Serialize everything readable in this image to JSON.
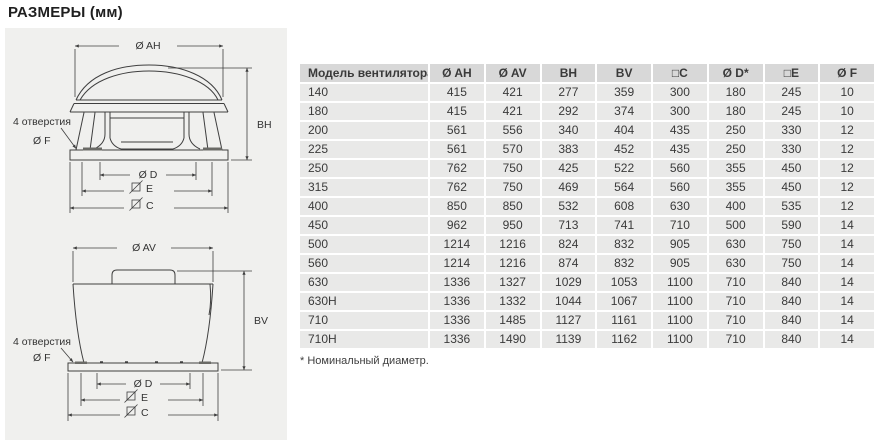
{
  "page": {
    "title": "РАЗМЕРЫ (мм)"
  },
  "drawings": {
    "top": {
      "view": "horizontal-discharge-fan-side-view",
      "dim_diameter_top": "Ø AH",
      "dim_height": "BH",
      "holes_label": "4 отверстия",
      "holes_diameter": "Ø F",
      "dim_d": "Ø D",
      "dim_e": "E",
      "dim_c": "C"
    },
    "bottom": {
      "view": "vertical-discharge-fan-side-view",
      "dim_diameter_top": "Ø AV",
      "dim_height": "BV",
      "holes_label": "4 отверстия",
      "holes_diameter": "Ø F",
      "dim_d": "Ø D",
      "dim_e": "E",
      "dim_c": "C"
    }
  },
  "table": {
    "columns": [
      "Модель вентилятора",
      "Ø AH",
      "Ø AV",
      "BH",
      "BV",
      "□C",
      "Ø D*",
      "□E",
      "Ø F"
    ],
    "rows": [
      [
        "140",
        "415",
        "421",
        "277",
        "359",
        "300",
        "180",
        "245",
        "10"
      ],
      [
        "180",
        "415",
        "421",
        "292",
        "374",
        "300",
        "180",
        "245",
        "10"
      ],
      [
        "200",
        "561",
        "556",
        "340",
        "404",
        "435",
        "250",
        "330",
        "12"
      ],
      [
        "225",
        "561",
        "570",
        "383",
        "452",
        "435",
        "250",
        "330",
        "12"
      ],
      [
        "250",
        "762",
        "750",
        "425",
        "522",
        "560",
        "355",
        "450",
        "12"
      ],
      [
        "315",
        "762",
        "750",
        "469",
        "564",
        "560",
        "355",
        "450",
        "12"
      ],
      [
        "400",
        "850",
        "850",
        "532",
        "608",
        "630",
        "400",
        "535",
        "12"
      ],
      [
        "450",
        "962",
        "950",
        "713",
        "741",
        "710",
        "500",
        "590",
        "14"
      ],
      [
        "500",
        "1214",
        "1216",
        "824",
        "832",
        "905",
        "630",
        "750",
        "14"
      ],
      [
        "560",
        "1214",
        "1216",
        "874",
        "832",
        "905",
        "630",
        "750",
        "14"
      ],
      [
        "630",
        "1336",
        "1327",
        "1029",
        "1053",
        "1100",
        "710",
        "840",
        "14"
      ],
      [
        "630H",
        "1336",
        "1332",
        "1044",
        "1067",
        "1100",
        "710",
        "840",
        "14"
      ],
      [
        "710",
        "1336",
        "1485",
        "1127",
        "1161",
        "1100",
        "710",
        "840",
        "14"
      ],
      [
        "710H",
        "1336",
        "1490",
        "1139",
        "1162",
        "1100",
        "710",
        "840",
        "14"
      ]
    ],
    "footnote": "* Номинальный диаметр."
  },
  "colors": {
    "panel_background": "#f0f0ee",
    "drawing_line": "#3f3f3f",
    "table_header_background": "#d8d8d8",
    "table_row_background": "#e9e9e8",
    "text": "#3a3a3a"
  }
}
